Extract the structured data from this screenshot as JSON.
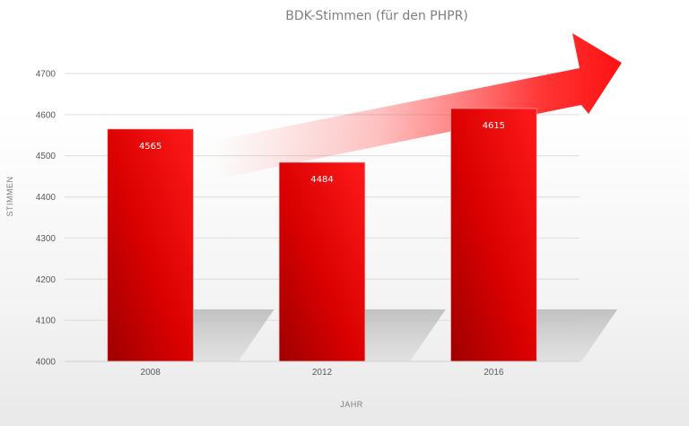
{
  "chart_data": {
    "type": "bar",
    "title": "BDK-Stimmen (für den PHPR)",
    "xlabel": "JAHR",
    "ylabel": "STIMMEN",
    "categories": [
      "2008",
      "2012",
      "2016"
    ],
    "values": [
      4565,
      4484,
      4615
    ],
    "ylim": [
      4000,
      4700
    ],
    "yticks": [
      4000,
      4100,
      4200,
      4300,
      4400,
      4500,
      4600,
      4700
    ],
    "grid": true,
    "legend": "none",
    "bar_color": "#e00000",
    "decoration": "trend-arrow-up"
  }
}
